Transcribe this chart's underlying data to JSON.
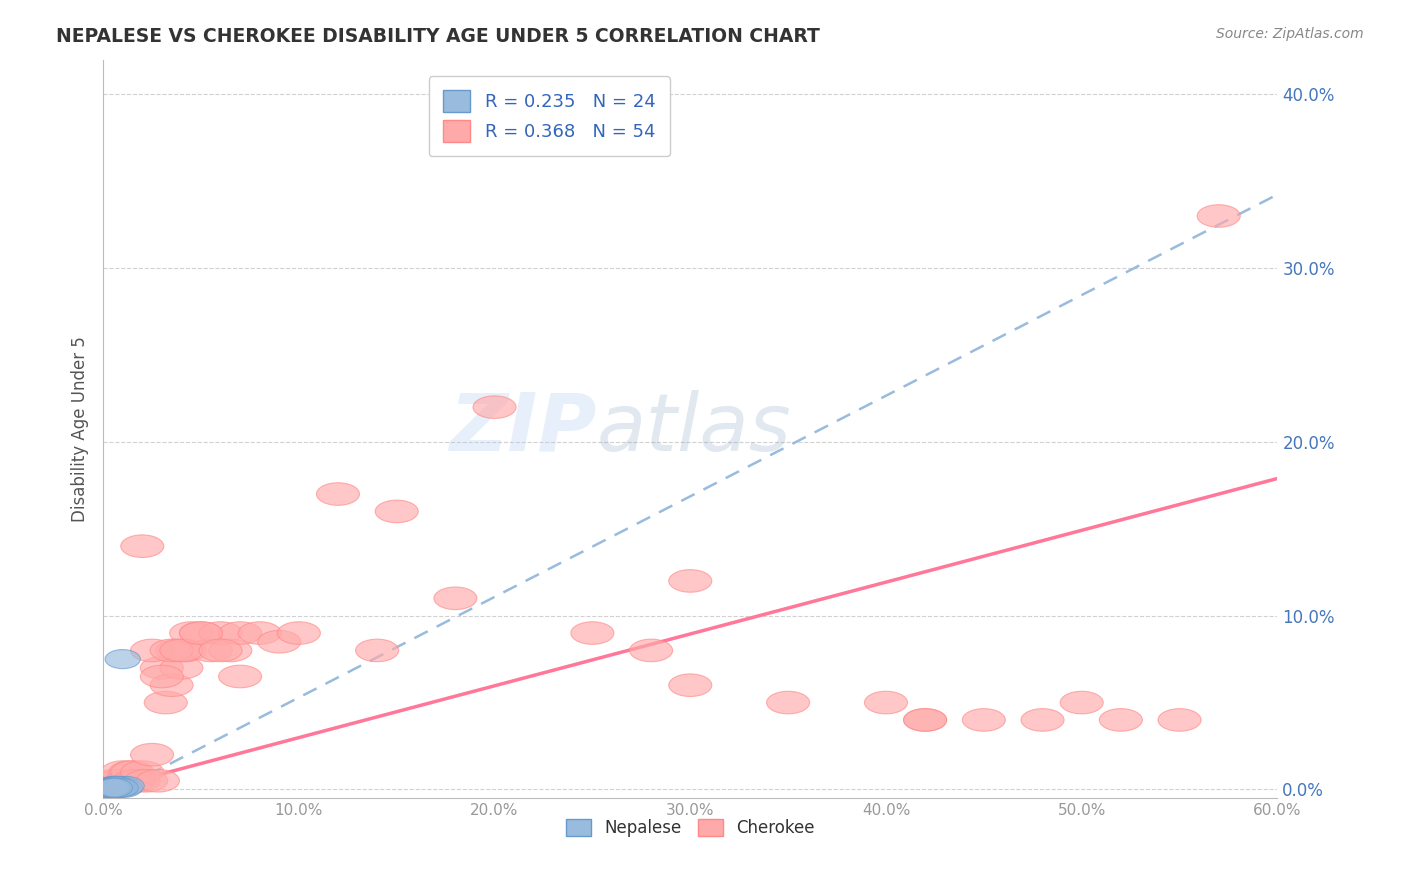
{
  "title": "NEPALESE VS CHEROKEE DISABILITY AGE UNDER 5 CORRELATION CHART",
  "source": "Source: ZipAtlas.com",
  "ylabel": "Disability Age Under 5",
  "xlim": [
    0.0,
    0.6
  ],
  "ylim": [
    -0.005,
    0.42
  ],
  "xticks": [
    0.0,
    0.1,
    0.2,
    0.3,
    0.4,
    0.5,
    0.6
  ],
  "yticks": [
    0.0,
    0.1,
    0.2,
    0.3,
    0.4
  ],
  "xtick_labels": [
    "0.0%",
    "10.0%",
    "20.0%",
    "30.0%",
    "40.0%",
    "50.0%",
    "60.0%"
  ],
  "ytick_labels": [
    "0.0%",
    "10.0%",
    "20.0%",
    "30.0%",
    "40.0%"
  ],
  "nepalese_color": "#99BBDD",
  "nepalese_edge": "#6699CC",
  "cherokee_color": "#FFAAAA",
  "cherokee_edge": "#FF8888",
  "trendline_nepalese_color": "#99BBDD",
  "trendline_cherokee_color": "#FF7799",
  "nepalese_R": 0.235,
  "nepalese_N": 24,
  "cherokee_R": 0.368,
  "cherokee_N": 54,
  "background_color": "#FFFFFF",
  "grid_color": "#CCCCCC",
  "ytick_color": "#4477BB",
  "xtick_color": "#999999",
  "nepalese_x": [
    0.002,
    0.004,
    0.005,
    0.006,
    0.007,
    0.008,
    0.009,
    0.01,
    0.011,
    0.012,
    0.003,
    0.005,
    0.006,
    0.007,
    0.008,
    0.003,
    0.004,
    0.006,
    0.007,
    0.009,
    0.004,
    0.005,
    0.006,
    0.01
  ],
  "nepalese_y": [
    0.001,
    0.001,
    0.002,
    0.002,
    0.001,
    0.002,
    0.001,
    0.002,
    0.001,
    0.002,
    0.001,
    0.001,
    0.002,
    0.001,
    0.001,
    0.001,
    0.001,
    0.001,
    0.002,
    0.001,
    0.001,
    0.001,
    0.001,
    0.075
  ],
  "cherokee_x": [
    0.005,
    0.008,
    0.01,
    0.012,
    0.014,
    0.015,
    0.016,
    0.018,
    0.02,
    0.022,
    0.025,
    0.028,
    0.03,
    0.032,
    0.035,
    0.038,
    0.04,
    0.042,
    0.045,
    0.05,
    0.055,
    0.06,
    0.065,
    0.07,
    0.08,
    0.09,
    0.1,
    0.12,
    0.14,
    0.15,
    0.18,
    0.2,
    0.25,
    0.28,
    0.3,
    0.35,
    0.4,
    0.42,
    0.45,
    0.48,
    0.5,
    0.52,
    0.55,
    0.57,
    0.02,
    0.025,
    0.03,
    0.035,
    0.04,
    0.05,
    0.06,
    0.07,
    0.3,
    0.42
  ],
  "cherokee_y": [
    0.005,
    0.005,
    0.01,
    0.005,
    0.01,
    0.01,
    0.005,
    0.005,
    0.01,
    0.005,
    0.02,
    0.005,
    0.07,
    0.05,
    0.06,
    0.08,
    0.07,
    0.08,
    0.09,
    0.09,
    0.08,
    0.09,
    0.08,
    0.09,
    0.09,
    0.085,
    0.09,
    0.17,
    0.08,
    0.16,
    0.11,
    0.22,
    0.09,
    0.08,
    0.06,
    0.05,
    0.05,
    0.04,
    0.04,
    0.04,
    0.05,
    0.04,
    0.04,
    0.33,
    0.14,
    0.08,
    0.065,
    0.08,
    0.08,
    0.09,
    0.08,
    0.065,
    0.12,
    0.04
  ]
}
